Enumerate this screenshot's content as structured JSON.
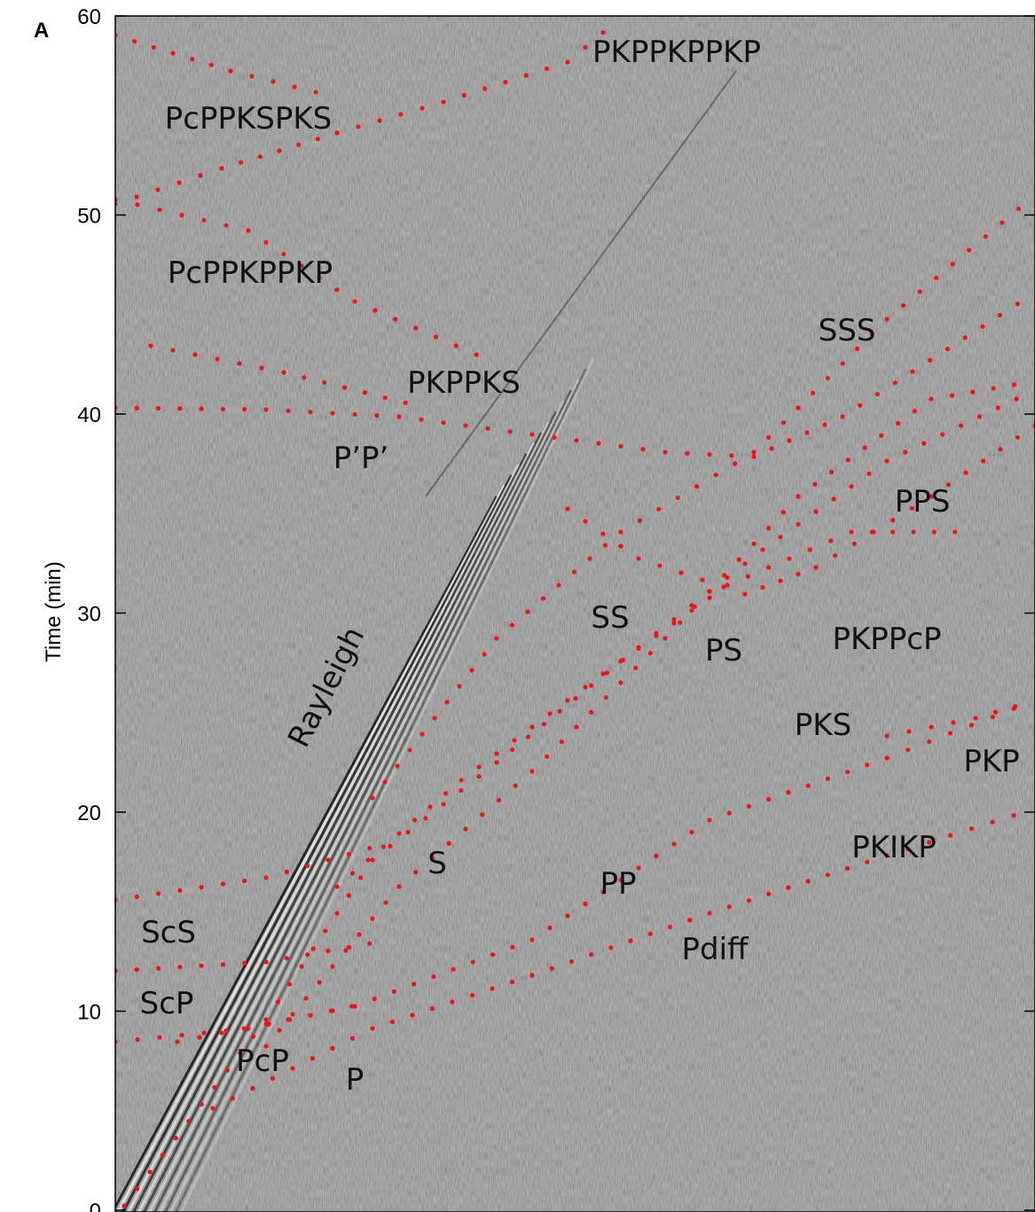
{
  "chart_data": {
    "type": "record-section",
    "panel_label": "A",
    "ylabel": "Time (min)",
    "ylim": [
      0,
      60
    ],
    "yticks": [
      0,
      10,
      20,
      30,
      40,
      50,
      60
    ],
    "phase_labels": [
      "PKPPKPPKP",
      "PcPPKSPKS",
      "PcPPKPPKP",
      "PKPPKS",
      "P’P’",
      "SSS",
      "PPS",
      "SS",
      "PS",
      "PKPPcP",
      "Rayleigh",
      "PKS",
      "PKP",
      "S",
      "PKIKP",
      "PP",
      "ScS",
      "Pdiff",
      "ScP",
      "PcP",
      "P"
    ],
    "marker_color": "#e8161b"
  }
}
